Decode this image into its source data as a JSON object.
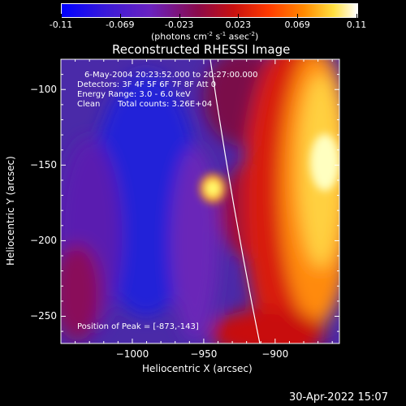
{
  "chart_data": {
    "type": "heatmap",
    "colorbar": {
      "ticks": [
        "-0.11",
        "-0.069",
        "-0.023",
        "0.023",
        "0.069",
        "0.11"
      ],
      "units_prefix": "(photons cm",
      "units_exp1": "-2",
      "units_mid": " s",
      "units_exp2": "-1",
      "units_suffix": " asec",
      "units_exp3": "-2",
      "units_close": ")",
      "range": [
        -0.11,
        0.11
      ]
    },
    "title": "Reconstructed RHESSI Image",
    "annotations": {
      "time_range": "6-May-2004 20:23:52.000 to 20:27:00.000",
      "detectors": "Detectors: 3F 4F 5F 6F 7F 8F  Att 0",
      "energy": "Energy Range: 3.0 - 6.0 keV",
      "method": "Clean",
      "counts": "Total counts: 3.26E+04",
      "peak": "Position of Peak = [-873,-143]"
    },
    "xlabel": "Heliocentric X (arcsec)",
    "ylabel": "Heliocentric Y (arcsec)",
    "xlim": [
      -1050,
      -855
    ],
    "ylim": [
      -268,
      -80
    ],
    "xticks": [
      {
        "value": -1000,
        "label": "−1000"
      },
      {
        "value": -950,
        "label": "−950"
      },
      {
        "value": -900,
        "label": "−900"
      }
    ],
    "yticks": [
      {
        "value": -100,
        "label": "−100"
      },
      {
        "value": -150,
        "label": "−150"
      },
      {
        "value": -200,
        "label": "−200"
      },
      {
        "value": -250,
        "label": "−250"
      }
    ],
    "peak_position": [
      -873,
      -143
    ],
    "limb_color": "#ffffff"
  },
  "footer": {
    "timestamp": "30-Apr-2022 15:07"
  }
}
